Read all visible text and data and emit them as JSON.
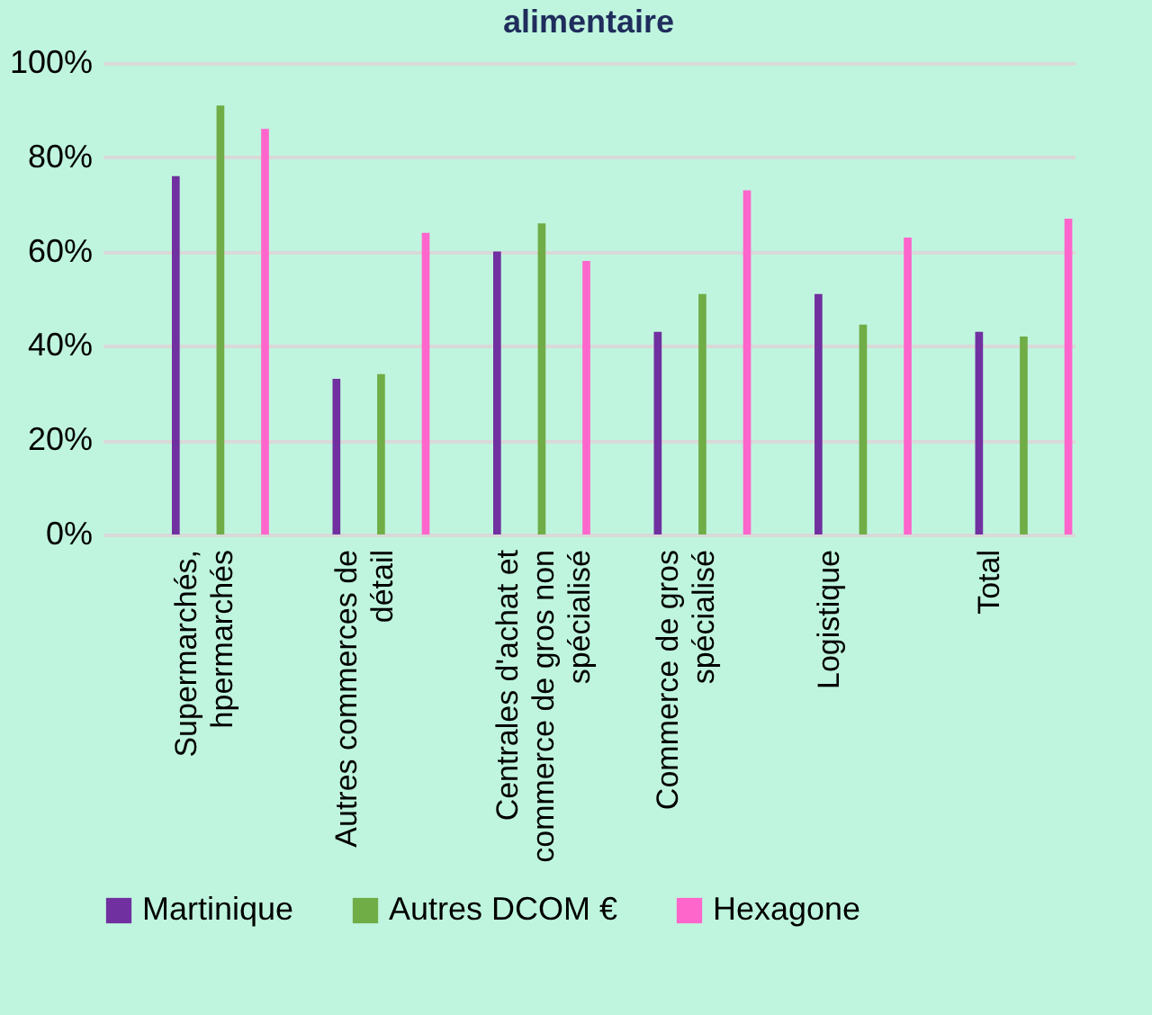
{
  "chart_data": {
    "type": "bar",
    "title": "alimentaire",
    "categories": [
      "Supermarchés, hpermarchés",
      "Autres commerces de détail",
      "Centrales d'achat et commerce de gros non spécialisé",
      "Commerce de gros spécialisé",
      "Logistique",
      "Total"
    ],
    "series": [
      {
        "name": "Martinique",
        "color": "#7030a0",
        "values": [
          76,
          33,
          60,
          43,
          51,
          43
        ]
      },
      {
        "name": "Autres DCOM €",
        "color": "#70ad47",
        "values": [
          91,
          34,
          66,
          51,
          44.5,
          42
        ]
      },
      {
        "name": "Hexagone",
        "color": "#ff66cc",
        "values": [
          86,
          64,
          58,
          73,
          63,
          67
        ]
      }
    ],
    "ylim": [
      0,
      100
    ],
    "yticks": [
      {
        "value": 0,
        "label": "0%"
      },
      {
        "value": 20,
        "label": "20%"
      },
      {
        "value": 40,
        "label": "40%"
      },
      {
        "value": 60,
        "label": "60%"
      },
      {
        "value": 80,
        "label": "80%"
      },
      {
        "value": 100,
        "label": "100%"
      }
    ],
    "grid": "y",
    "legend": "bottom"
  }
}
